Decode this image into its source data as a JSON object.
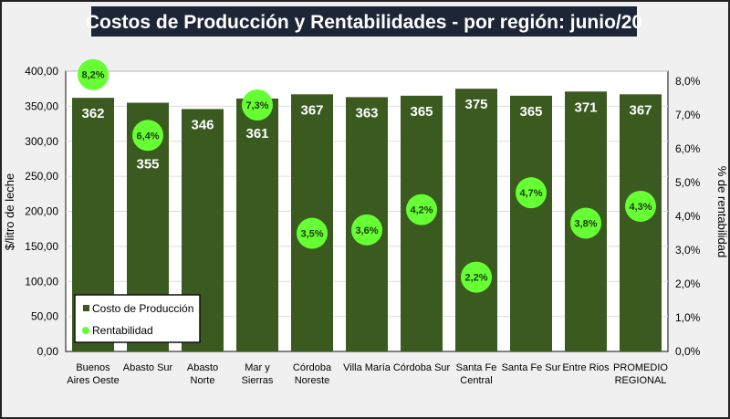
{
  "chart_data": {
    "type": "bar+scatter",
    "title": "Costos de Producción y Rentabilidades - por región: junio/20",
    "categories": [
      [
        "Buenos",
        "Aires Oeste"
      ],
      [
        "Abasto Sur"
      ],
      [
        "Abasto",
        "Norte"
      ],
      [
        "Mar y",
        "Sierras"
      ],
      [
        "Córdoba",
        "Noreste"
      ],
      [
        "Villa María"
      ],
      [
        "Córdoba Sur"
      ],
      [
        "Santa Fe",
        "Central"
      ],
      [
        "Santa Fe Sur"
      ],
      [
        "Entre Rios"
      ],
      [
        "PROMEDIO",
        "REGIONAL"
      ]
    ],
    "series": [
      {
        "name": "Costo de Producción",
        "axis": "left",
        "color": "#3b5a1f",
        "values": [
          362,
          355,
          346,
          361,
          367,
          363,
          365,
          375,
          365,
          371,
          367
        ],
        "labels": [
          "362",
          "355",
          "346",
          "361",
          "367",
          "363",
          "365",
          "375",
          "365",
          "371",
          "367"
        ]
      },
      {
        "name": "Rentabilidad",
        "axis": "right",
        "color": "#66ff33",
        "values": [
          8.2,
          6.4,
          null,
          7.3,
          3.5,
          3.6,
          4.2,
          2.2,
          4.7,
          3.8,
          4.3
        ],
        "labels": [
          "8,2%",
          "6,4%",
          "",
          "7,3%",
          "3,5%",
          "3,6%",
          "4,2%",
          "2,2%",
          "4,7%",
          "3,8%",
          "4,3%"
        ]
      }
    ],
    "ylabel": "$/litro de leche",
    "y2label": "% de rentabilidad",
    "ylim": [
      0,
      400
    ],
    "y2lim": [
      0,
      8.3
    ],
    "yticks": [
      "0,00",
      "50,00",
      "100,00",
      "150,00",
      "200,00",
      "250,00",
      "300,00",
      "350,00",
      "400,00"
    ],
    "y2ticks": [
      "0,0%",
      "1,0%",
      "2,0%",
      "3,0%",
      "4,0%",
      "5,0%",
      "6,0%",
      "7,0%",
      "8,0%"
    ],
    "grid": true,
    "legend": "bottom-left"
  }
}
